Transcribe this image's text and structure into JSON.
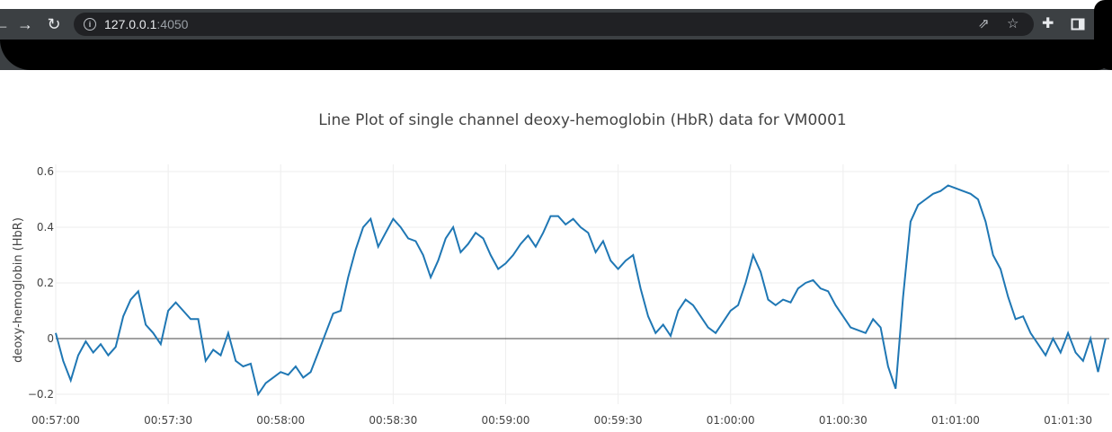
{
  "browser": {
    "url_host": "127.0.0.1",
    "url_port": ":4050",
    "icons": [
      "back-icon",
      "forward-icon",
      "reload-icon",
      "info-icon",
      "share-icon",
      "star-icon",
      "extensions-icon",
      "side-panel-icon"
    ]
  },
  "chart_data": {
    "type": "line",
    "title": "Line Plot of single channel deoxy-hemoglobin (HbR) data for VM0001",
    "xlabel": "",
    "ylabel": "deoxy-hemoglobin (HbR)",
    "x_tick_labels": [
      "00:57:00",
      "00:57:30",
      "00:58:00",
      "00:58:30",
      "00:59:00",
      "00:59:30",
      "01:00:00",
      "01:00:30",
      "01:01:00",
      "01:01:30"
    ],
    "y_tick_labels": [
      "0.6",
      "0.4",
      "0.2",
      "0",
      "−0.2"
    ],
    "y_ticks": [
      0.6,
      0.4,
      0.2,
      0,
      -0.2
    ],
    "xlim_seconds": [
      0,
      281
    ],
    "ylim": [
      -0.22,
      0.63
    ],
    "grid": true,
    "zero_line": true,
    "color": "#1f77b4",
    "series": [
      {
        "x_seconds": [
          0,
          2,
          4,
          6,
          8,
          10,
          12,
          14,
          16,
          18,
          20,
          22,
          24,
          26,
          28,
          30,
          32,
          34,
          36,
          38,
          40,
          42,
          44,
          46,
          48,
          50,
          52,
          54,
          56,
          58,
          60,
          62,
          64,
          66,
          68,
          70,
          72,
          74,
          76,
          78,
          80,
          82,
          84,
          86,
          88,
          90,
          92,
          94,
          96,
          98,
          100,
          102,
          104,
          106,
          108,
          110,
          112,
          114,
          116,
          118,
          120,
          122,
          124,
          126,
          128,
          130,
          132,
          134,
          136,
          138,
          140,
          142,
          144,
          146,
          148,
          150,
          152,
          154,
          156,
          158,
          160,
          162,
          164,
          166,
          168,
          170,
          172,
          174,
          176,
          178,
          180,
          182,
          184,
          186,
          188,
          190,
          192,
          194,
          196,
          198,
          200,
          202,
          204,
          206,
          208,
          210,
          212,
          214,
          216,
          218,
          220,
          222,
          224,
          226,
          228,
          230,
          232,
          234,
          236,
          238,
          240,
          242,
          244,
          246,
          248,
          250,
          252,
          254,
          256,
          258,
          260,
          262,
          264,
          266,
          268,
          270,
          272,
          274,
          276,
          278,
          280
        ],
        "values": [
          0.02,
          -0.08,
          -0.15,
          -0.06,
          -0.01,
          -0.05,
          -0.02,
          -0.06,
          -0.03,
          0.08,
          0.14,
          0.17,
          0.05,
          0.02,
          -0.02,
          0.1,
          0.13,
          0.1,
          0.07,
          0.07,
          -0.08,
          -0.04,
          -0.06,
          0.02,
          -0.08,
          -0.1,
          -0.09,
          -0.2,
          -0.16,
          -0.14,
          -0.12,
          -0.13,
          -0.1,
          -0.14,
          -0.12,
          -0.05,
          0.02,
          0.09,
          0.1,
          0.22,
          0.32,
          0.4,
          0.43,
          0.33,
          0.38,
          0.43,
          0.4,
          0.36,
          0.35,
          0.3,
          0.22,
          0.28,
          0.36,
          0.4,
          0.31,
          0.34,
          0.38,
          0.36,
          0.3,
          0.25,
          0.27,
          0.3,
          0.34,
          0.37,
          0.33,
          0.38,
          0.44,
          0.44,
          0.41,
          0.43,
          0.4,
          0.38,
          0.31,
          0.35,
          0.28,
          0.25,
          0.28,
          0.3,
          0.18,
          0.08,
          0.02,
          0.05,
          0.01,
          0.1,
          0.14,
          0.12,
          0.08,
          0.04,
          0.02,
          0.06,
          0.1,
          0.12,
          0.2,
          0.3,
          0.24,
          0.14,
          0.12,
          0.14,
          0.13,
          0.18,
          0.2,
          0.21,
          0.18,
          0.17,
          0.12,
          0.08,
          0.04,
          0.03,
          0.02,
          0.07,
          0.04,
          -0.1,
          -0.18,
          0.15,
          0.42,
          0.48,
          0.5,
          0.52,
          0.53,
          0.55,
          0.54,
          0.53,
          0.52,
          0.5,
          0.42,
          0.3,
          0.25,
          0.15,
          0.07,
          0.08,
          0.02,
          -0.02,
          -0.06,
          0.0,
          -0.05,
          0.02,
          -0.05,
          -0.08,
          0.0,
          -0.12,
          0.0
        ]
      }
    ]
  }
}
